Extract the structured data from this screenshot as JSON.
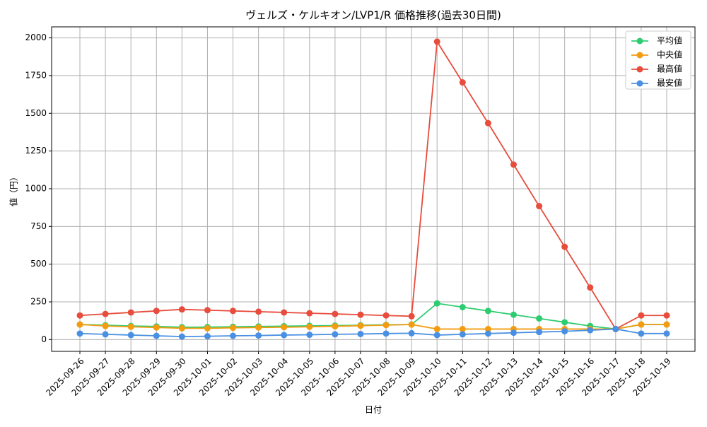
{
  "chart_data": {
    "type": "line",
    "title": "ヴェルズ・ケルキオン/LVP1/R 価格推移(過去30日間)",
    "x_label": "日付",
    "y_label": "値（円）",
    "categories": [
      "2025-09-26",
      "2025-09-27",
      "2025-09-28",
      "2025-09-29",
      "2025-09-30",
      "2025-10-01",
      "2025-10-02",
      "2025-10-03",
      "2025-10-04",
      "2025-10-05",
      "2025-10-06",
      "2025-10-07",
      "2025-10-08",
      "2025-10-09",
      "2025-10-10",
      "2025-10-11",
      "2025-10-12",
      "2025-10-13",
      "2025-10-14",
      "2025-10-15",
      "2025-10-16",
      "2025-10-17",
      "2025-10-18",
      "2025-10-19"
    ],
    "series": [
      {
        "name": "平均値",
        "color": "#2ecc71",
        "values": [
          100,
          95,
          90,
          87,
          82,
          83,
          85,
          87,
          89,
          91,
          93,
          95,
          98,
          100,
          240,
          215,
          190,
          165,
          140,
          115,
          90,
          70,
          100,
          100
        ]
      },
      {
        "name": "中央値",
        "color": "#f39c12",
        "values": [
          100,
          90,
          85,
          80,
          75,
          75,
          78,
          80,
          82,
          85,
          88,
          92,
          96,
          100,
          70,
          70,
          70,
          70,
          70,
          70,
          70,
          70,
          100,
          100
        ]
      },
      {
        "name": "最高値",
        "color": "#e74c3c",
        "values": [
          160,
          170,
          180,
          190,
          200,
          195,
          190,
          185,
          180,
          175,
          170,
          165,
          160,
          155,
          1975,
          1705,
          1435,
          1160,
          885,
          615,
          345,
          70,
          160,
          160
        ]
      },
      {
        "name": "最安値",
        "color": "#4a90e2",
        "values": [
          40,
          35,
          30,
          25,
          20,
          22,
          25,
          27,
          30,
          32,
          35,
          37,
          40,
          42,
          30,
          35,
          40,
          45,
          50,
          55,
          62,
          70,
          40,
          40
        ]
      }
    ],
    "ylim": [
      -78,
      2073
    ],
    "yticks": [
      0,
      250,
      500,
      750,
      1000,
      1250,
      1500,
      1750,
      2000
    ],
    "grid": true,
    "legend": "upper right"
  }
}
